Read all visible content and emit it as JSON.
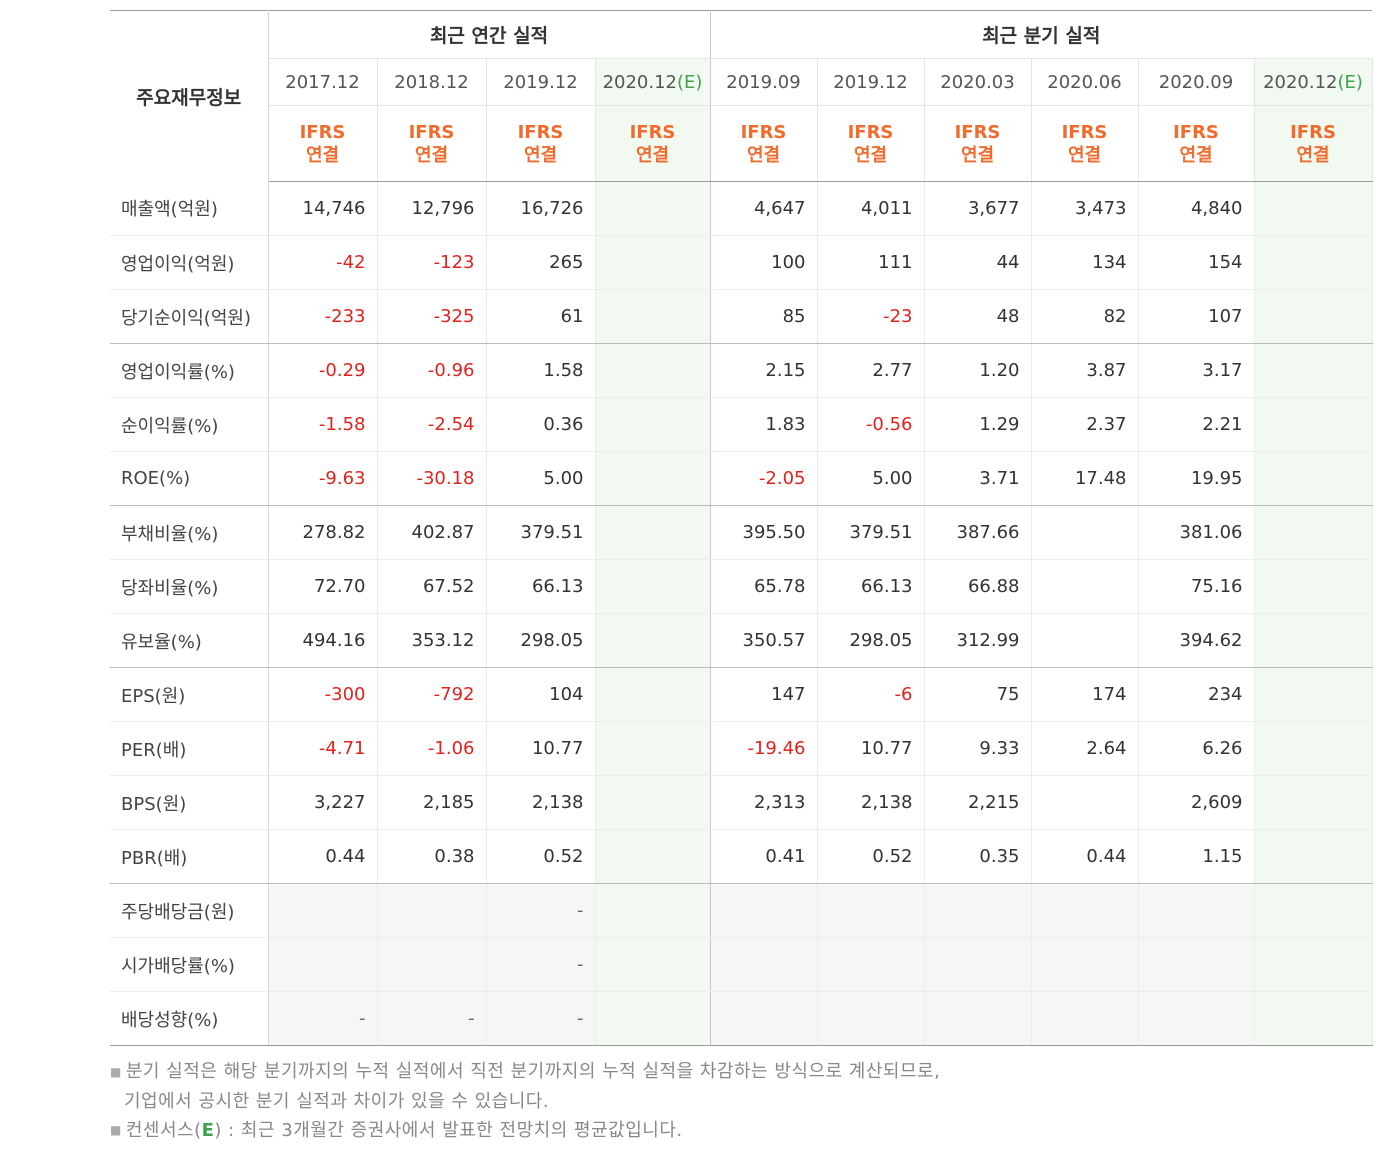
{
  "table": {
    "corner_label": "주요재무정보",
    "groups": {
      "annual": "최근 연간 실적",
      "quarterly": "최근 분기 실적"
    },
    "periods": [
      {
        "label": "2017.12",
        "est": ""
      },
      {
        "label": "2018.12",
        "est": ""
      },
      {
        "label": "2019.12",
        "est": ""
      },
      {
        "label": "2020.12",
        "est": "(E)"
      },
      {
        "label": "2019.09",
        "est": ""
      },
      {
        "label": "2019.12",
        "est": ""
      },
      {
        "label": "2020.03",
        "est": ""
      },
      {
        "label": "2020.06",
        "est": ""
      },
      {
        "label": "2020.09",
        "est": ""
      },
      {
        "label": "2020.12",
        "est": "(E)"
      }
    ],
    "ifrs": {
      "line1": "IFRS",
      "line2": "연결"
    },
    "rows": [
      {
        "label": "매출액(억원)",
        "values": [
          "14,746",
          "12,796",
          "16,726",
          "",
          "4,647",
          "4,011",
          "3,677",
          "3,473",
          "4,840",
          ""
        ]
      },
      {
        "label": "영업이익(억원)",
        "values": [
          "-42",
          "-123",
          "265",
          "",
          "100",
          "111",
          "44",
          "134",
          "154",
          ""
        ]
      },
      {
        "label": "당기순이익(억원)",
        "values": [
          "-233",
          "-325",
          "61",
          "",
          "85",
          "-23",
          "48",
          "82",
          "107",
          ""
        ]
      },
      {
        "label": "영업이익률(%)",
        "values": [
          "-0.29",
          "-0.96",
          "1.58",
          "",
          "2.15",
          "2.77",
          "1.20",
          "3.87",
          "3.17",
          ""
        ]
      },
      {
        "label": "순이익률(%)",
        "values": [
          "-1.58",
          "-2.54",
          "0.36",
          "",
          "1.83",
          "-0.56",
          "1.29",
          "2.37",
          "2.21",
          ""
        ]
      },
      {
        "label": "ROE(%)",
        "values": [
          "-9.63",
          "-30.18",
          "5.00",
          "",
          "-2.05",
          "5.00",
          "3.71",
          "17.48",
          "19.95",
          ""
        ]
      },
      {
        "label": "부채비율(%)",
        "values": [
          "278.82",
          "402.87",
          "379.51",
          "",
          "395.50",
          "379.51",
          "387.66",
          "",
          "381.06",
          ""
        ]
      },
      {
        "label": "당좌비율(%)",
        "values": [
          "72.70",
          "67.52",
          "66.13",
          "",
          "65.78",
          "66.13",
          "66.88",
          "",
          "75.16",
          ""
        ]
      },
      {
        "label": "유보율(%)",
        "values": [
          "494.16",
          "353.12",
          "298.05",
          "",
          "350.57",
          "298.05",
          "312.99",
          "",
          "394.62",
          ""
        ]
      },
      {
        "label": "EPS(원)",
        "values": [
          "-300",
          "-792",
          "104",
          "",
          "147",
          "-6",
          "75",
          "174",
          "234",
          ""
        ]
      },
      {
        "label": "PER(배)",
        "values": [
          "-4.71",
          "-1.06",
          "10.77",
          "",
          "-19.46",
          "10.77",
          "9.33",
          "2.64",
          "6.26",
          ""
        ]
      },
      {
        "label": "BPS(원)",
        "values": [
          "3,227",
          "2,185",
          "2,138",
          "",
          "2,313",
          "2,138",
          "2,215",
          "",
          "2,609",
          ""
        ]
      },
      {
        "label": "PBR(배)",
        "values": [
          "0.44",
          "0.38",
          "0.52",
          "",
          "0.41",
          "0.52",
          "0.35",
          "0.44",
          "1.15",
          ""
        ]
      },
      {
        "label": "주당배당금(원)",
        "values": [
          "",
          "",
          "-",
          "",
          "",
          "",
          "",
          "",
          "",
          ""
        ]
      },
      {
        "label": "시가배당률(%)",
        "values": [
          "",
          "",
          "-",
          "",
          "",
          "",
          "",
          "",
          "",
          ""
        ]
      },
      {
        "label": "배당성향(%)",
        "values": [
          "-",
          "-",
          "-",
          "",
          "",
          "",
          "",
          "",
          "",
          ""
        ]
      }
    ]
  },
  "notes": {
    "note1_line1": "분기 실적은 해당 분기까지의 누적 실적에서 직전 분기까지의 누적 실적을 차감하는 방식으로 계산되므로,",
    "note1_line2": "기업에서 공시한 분기 실적과 차이가 있을 수 있습니다.",
    "note2_prefix": "컨센서스(",
    "note2_mark": "E",
    "note2_suffix": ") : 최근 3개월간 증권사에서 발표한 전망치의 평균값입니다."
  },
  "colors": {
    "negative": "#e0231e",
    "ifrs": "#f06b2c",
    "estimate_mark": "#3fa24f",
    "estimate_bg": "#f1f9f1"
  }
}
